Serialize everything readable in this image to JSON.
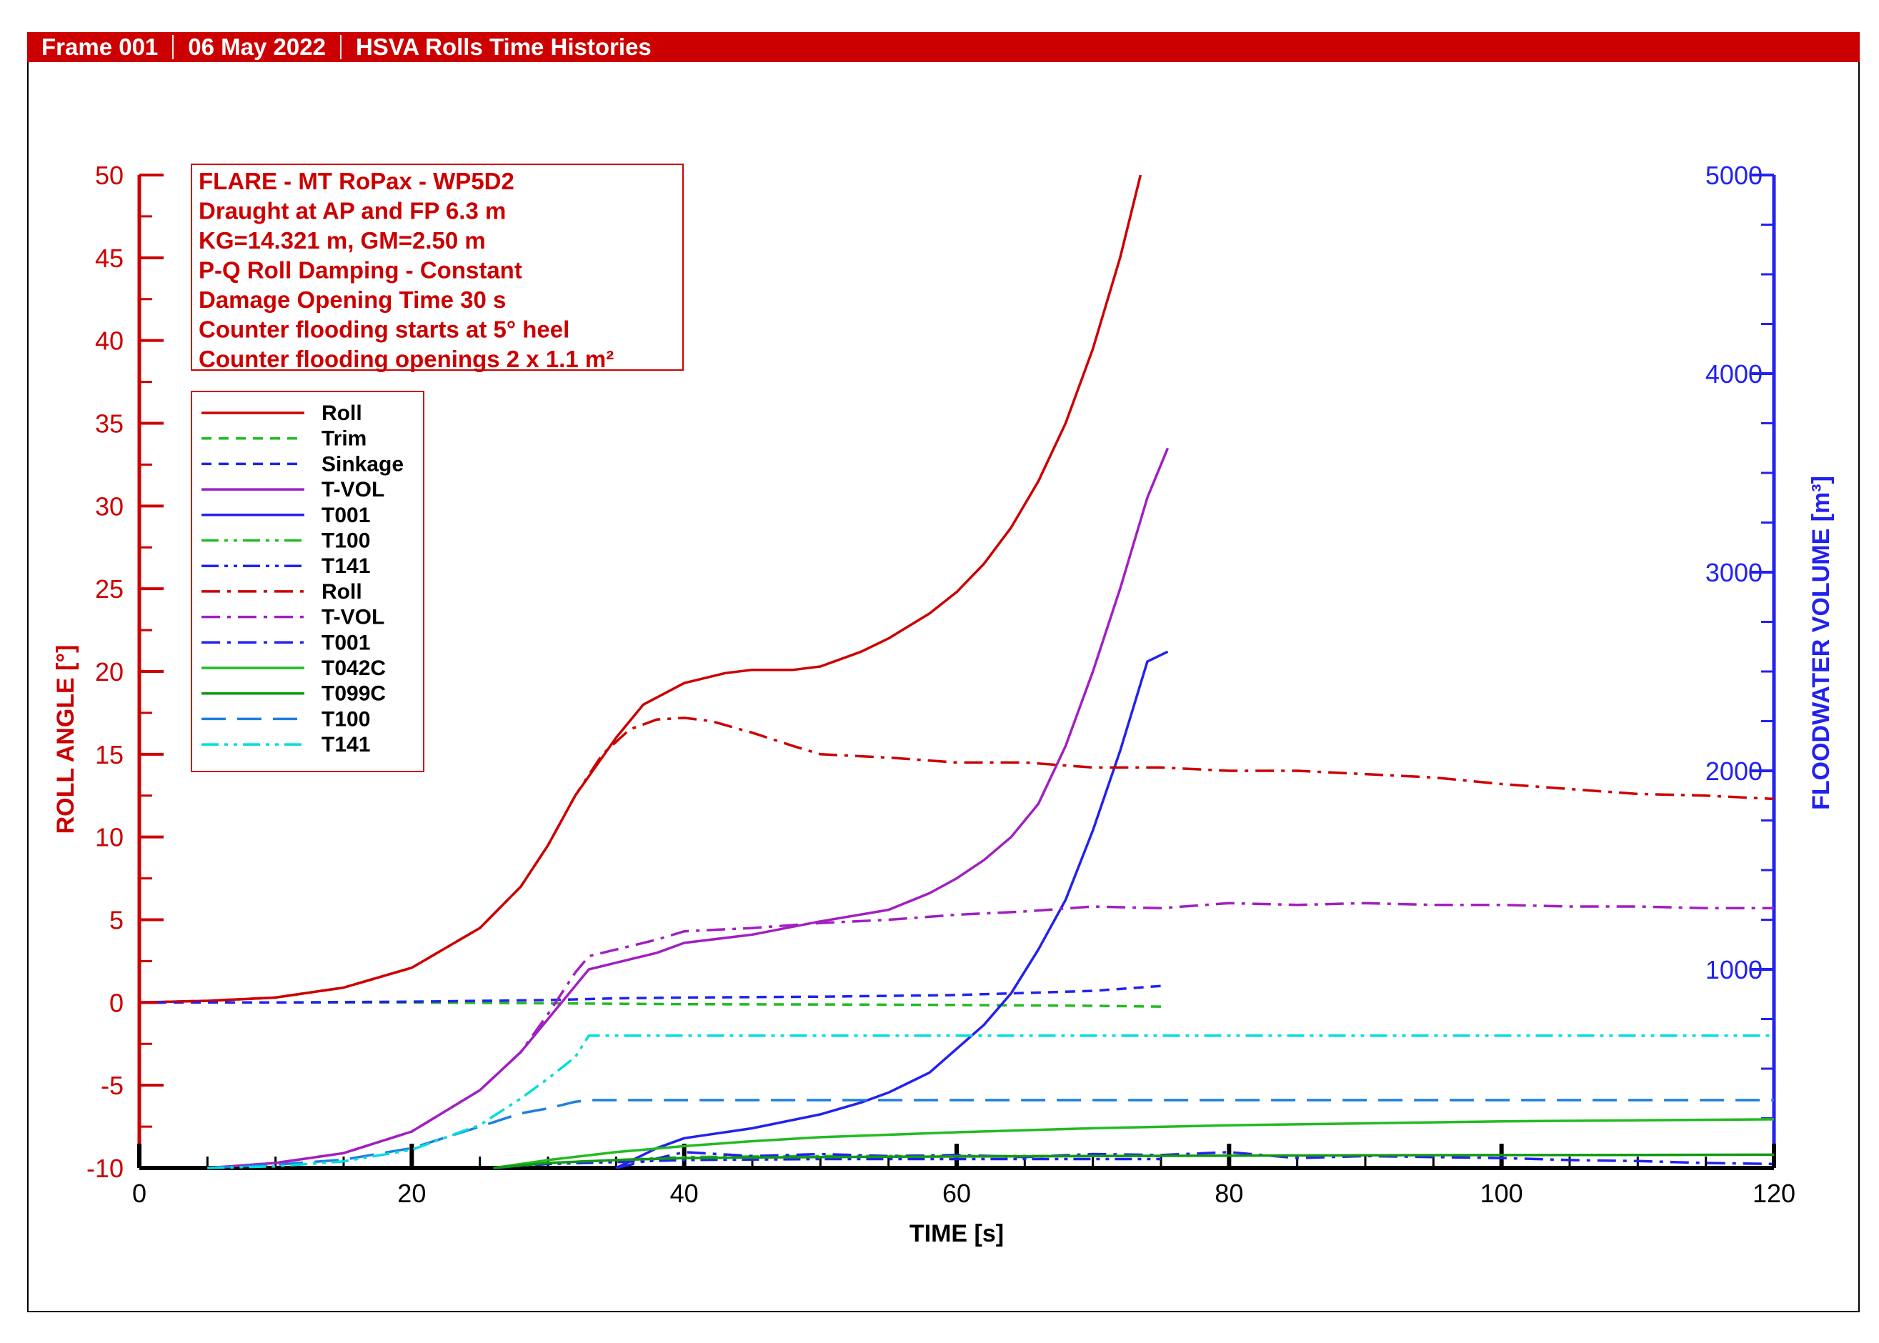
{
  "header": {
    "frame": "Frame 001",
    "date": "06 May 2022",
    "title": "HSVA Rolls Time Histories"
  },
  "colors": {
    "red": "#cc0000",
    "blue": "#2222ee",
    "green": "#22bb22",
    "darkgreen": "#119911",
    "purple": "#a020c0",
    "cyan": "#00dddd",
    "azure": "#1e7fe0"
  },
  "chart_data": {
    "type": "line",
    "info_box": [
      "FLARE - MT RoPax - WP5D2",
      "Draught at AP and FP 6.3 m",
      "KG=14.321 m, GM=2.50 m",
      "P-Q Roll Damping - Constant",
      "Damage Opening Time 30 s",
      "Counter flooding starts at 5° heel",
      "Counter flooding openings 2 x 1.1 m²"
    ],
    "xlabel": "TIME [s]",
    "ylabel": "ROLL ANGLE [°]",
    "y2label": "FLOODWATER VOLUME [m³]",
    "xlim": [
      0,
      120
    ],
    "ylim": [
      -10,
      50
    ],
    "y2lim": [
      0,
      5000
    ],
    "xticks": [
      0,
      20,
      40,
      60,
      80,
      100,
      120
    ],
    "yticks": [
      -10,
      -5,
      0,
      5,
      10,
      15,
      20,
      25,
      30,
      35,
      40,
      45,
      50
    ],
    "y2ticks": [
      1000,
      2000,
      3000,
      4000,
      5000
    ],
    "xtick_labels": [
      "0",
      "20",
      "40",
      "60",
      "80",
      "100",
      "120"
    ],
    "ytick_labels": [
      "-10",
      "-5",
      "0",
      "5",
      "10",
      "15",
      "20",
      "25",
      "30",
      "35",
      "40",
      "45",
      "50"
    ],
    "y2tick_labels": [
      "1000",
      "2000",
      "3000",
      "4000",
      "5000"
    ],
    "series": [
      {
        "name": "Roll",
        "color": "red",
        "dash": "solid",
        "axis": "left",
        "x": [
          0,
          5,
          10,
          15,
          20,
          25,
          28,
          30,
          32,
          35,
          37,
          40,
          43,
          45,
          48,
          50,
          53,
          55,
          58,
          60,
          62,
          64,
          66,
          68,
          70,
          72,
          73.5
        ],
        "y": [
          0,
          0.1,
          0.3,
          0.9,
          2.1,
          4.5,
          7.0,
          9.5,
          12.5,
          16.0,
          18.0,
          19.3,
          19.9,
          20.1,
          20.1,
          20.3,
          21.2,
          22.0,
          23.5,
          24.8,
          26.5,
          28.7,
          31.5,
          35.0,
          39.5,
          45.0,
          50.0
        ]
      },
      {
        "name": "Trim",
        "color": "green",
        "dash": "dash",
        "axis": "left",
        "x": [
          0,
          10,
          20,
          30,
          40,
          50,
          60,
          70,
          75
        ],
        "y": [
          0,
          0,
          0,
          -0.05,
          -0.1,
          -0.12,
          -0.15,
          -0.2,
          -0.25
        ]
      },
      {
        "name": "Sinkage",
        "color": "blue",
        "dash": "dash",
        "axis": "left",
        "x": [
          0,
          10,
          20,
          30,
          35,
          40,
          50,
          60,
          70,
          75
        ],
        "y": [
          0,
          0,
          0.05,
          0.15,
          0.25,
          0.3,
          0.35,
          0.45,
          0.7,
          1.0
        ]
      },
      {
        "name": "T-VOL",
        "color": "purple",
        "dash": "solid",
        "axis": "left",
        "x": [
          5,
          10,
          15,
          20,
          25,
          28,
          30,
          32,
          33,
          35,
          38,
          40,
          45,
          50,
          55,
          58,
          60,
          62,
          64,
          66,
          68,
          70,
          72,
          74,
          75.5
        ],
        "y": [
          -10,
          -9.7,
          -9.1,
          -7.8,
          -5.3,
          -3.0,
          -1.0,
          1.0,
          2.0,
          2.4,
          3.0,
          3.6,
          4.1,
          4.9,
          5.6,
          6.6,
          7.5,
          8.6,
          10.0,
          12.0,
          15.5,
          20.0,
          25.0,
          30.5,
          33.5
        ]
      },
      {
        "name": "T001",
        "color": "blue",
        "dash": "solid",
        "axis": "right",
        "x": [
          35,
          38,
          40,
          45,
          50,
          53,
          55,
          58,
          60,
          62,
          64,
          66,
          68,
          70,
          72,
          74,
          75.5
        ],
        "y2": [
          0,
          100,
          150,
          200,
          270,
          330,
          380,
          480,
          600,
          720,
          880,
          1100,
          1350,
          1700,
          2100,
          2550,
          2600
        ]
      },
      {
        "name": "T100",
        "color": "green",
        "dash": "dashdotdot",
        "axis": "right",
        "x": [
          26,
          30,
          35,
          40,
          50,
          60,
          70,
          75
        ],
        "y2": [
          0,
          25,
          40,
          55,
          60,
          60,
          60,
          60
        ]
      },
      {
        "name": "T141",
        "color": "blue",
        "dash": "dashdotdot",
        "axis": "right",
        "x": [
          26,
          30,
          35,
          40,
          50,
          60,
          70,
          75
        ],
        "y2": [
          0,
          20,
          30,
          40,
          45,
          45,
          45,
          45
        ]
      },
      {
        "name": "Roll",
        "color": "red",
        "dash": "dashdot",
        "axis": "left",
        "x": [
          0,
          5,
          10,
          15,
          20,
          25,
          28,
          30,
          32,
          34,
          36,
          38,
          40,
          42,
          45,
          48,
          50,
          55,
          60,
          65,
          70,
          75,
          80,
          85,
          90,
          95,
          100,
          105,
          110,
          115,
          120
        ],
        "y": [
          0,
          0.1,
          0.3,
          0.9,
          2.1,
          4.5,
          7.0,
          9.5,
          12.5,
          15.0,
          16.5,
          17.1,
          17.2,
          17.0,
          16.3,
          15.5,
          15.0,
          14.8,
          14.5,
          14.5,
          14.2,
          14.2,
          14.0,
          14.0,
          13.8,
          13.6,
          13.2,
          12.9,
          12.6,
          12.5,
          12.3
        ]
      },
      {
        "name": "T-VOL",
        "color": "purple",
        "dash": "dashdot",
        "axis": "left",
        "x": [
          5,
          10,
          15,
          20,
          25,
          28,
          30,
          32,
          33,
          35,
          38,
          40,
          45,
          50,
          55,
          60,
          65,
          70,
          75,
          80,
          85,
          90,
          95,
          100,
          105,
          110,
          115,
          120
        ],
        "y": [
          -10,
          -9.7,
          -9.1,
          -7.8,
          -5.3,
          -3.0,
          -0.7,
          1.8,
          2.8,
          3.2,
          3.8,
          4.3,
          4.5,
          4.8,
          5.0,
          5.3,
          5.5,
          5.8,
          5.7,
          6.0,
          5.9,
          6.0,
          5.9,
          5.9,
          5.8,
          5.8,
          5.7,
          5.7
        ]
      },
      {
        "name": "T001",
        "color": "blue",
        "dash": "dashdot",
        "axis": "right",
        "x": [
          35,
          40,
          45,
          50,
          55,
          60,
          65,
          70,
          75,
          80,
          85,
          90,
          95,
          100,
          105,
          110,
          115,
          120
        ],
        "y2": [
          0,
          80,
          60,
          70,
          60,
          65,
          55,
          70,
          65,
          80,
          50,
          60,
          55,
          50,
          40,
          35,
          25,
          20
        ]
      },
      {
        "name": "T042C",
        "color": "green",
        "dash": "solid",
        "axis": "right",
        "x": [
          26,
          30,
          35,
          40,
          45,
          50,
          60,
          70,
          80,
          90,
          100,
          110,
          120
        ],
        "y2": [
          0,
          40,
          80,
          110,
          135,
          155,
          180,
          200,
          215,
          225,
          235,
          240,
          245
        ]
      },
      {
        "name": "T099C",
        "color": "darkgreen",
        "dash": "solid",
        "axis": "right",
        "x": [
          26,
          30,
          35,
          40,
          50,
          60,
          70,
          80,
          90,
          100,
          110,
          120
        ],
        "y2": [
          0,
          25,
          40,
          50,
          55,
          58,
          60,
          62,
          64,
          65,
          66,
          67
        ]
      },
      {
        "name": "T100",
        "color": "azure",
        "dash": "longdash",
        "axis": "left",
        "x": [
          5,
          10,
          15,
          20,
          25,
          28,
          30,
          32,
          33,
          40,
          60,
          80,
          100,
          120
        ],
        "y": [
          -10,
          -9.8,
          -9.5,
          -8.8,
          -7.5,
          -6.7,
          -6.4,
          -6.0,
          -5.9,
          -5.9,
          -5.9,
          -5.9,
          -5.9,
          -5.9
        ]
      },
      {
        "name": "T141",
        "color": "cyan",
        "dash": "dashdotdot",
        "axis": "left",
        "x": [
          5,
          10,
          15,
          20,
          25,
          28,
          30,
          32,
          33,
          40,
          60,
          80,
          100,
          120
        ],
        "y": [
          -10,
          -9.9,
          -9.6,
          -8.9,
          -7.4,
          -5.8,
          -4.6,
          -3.3,
          -2.0,
          -2.0,
          -2.0,
          -2.0,
          -2.0,
          -2.0
        ]
      }
    ]
  }
}
